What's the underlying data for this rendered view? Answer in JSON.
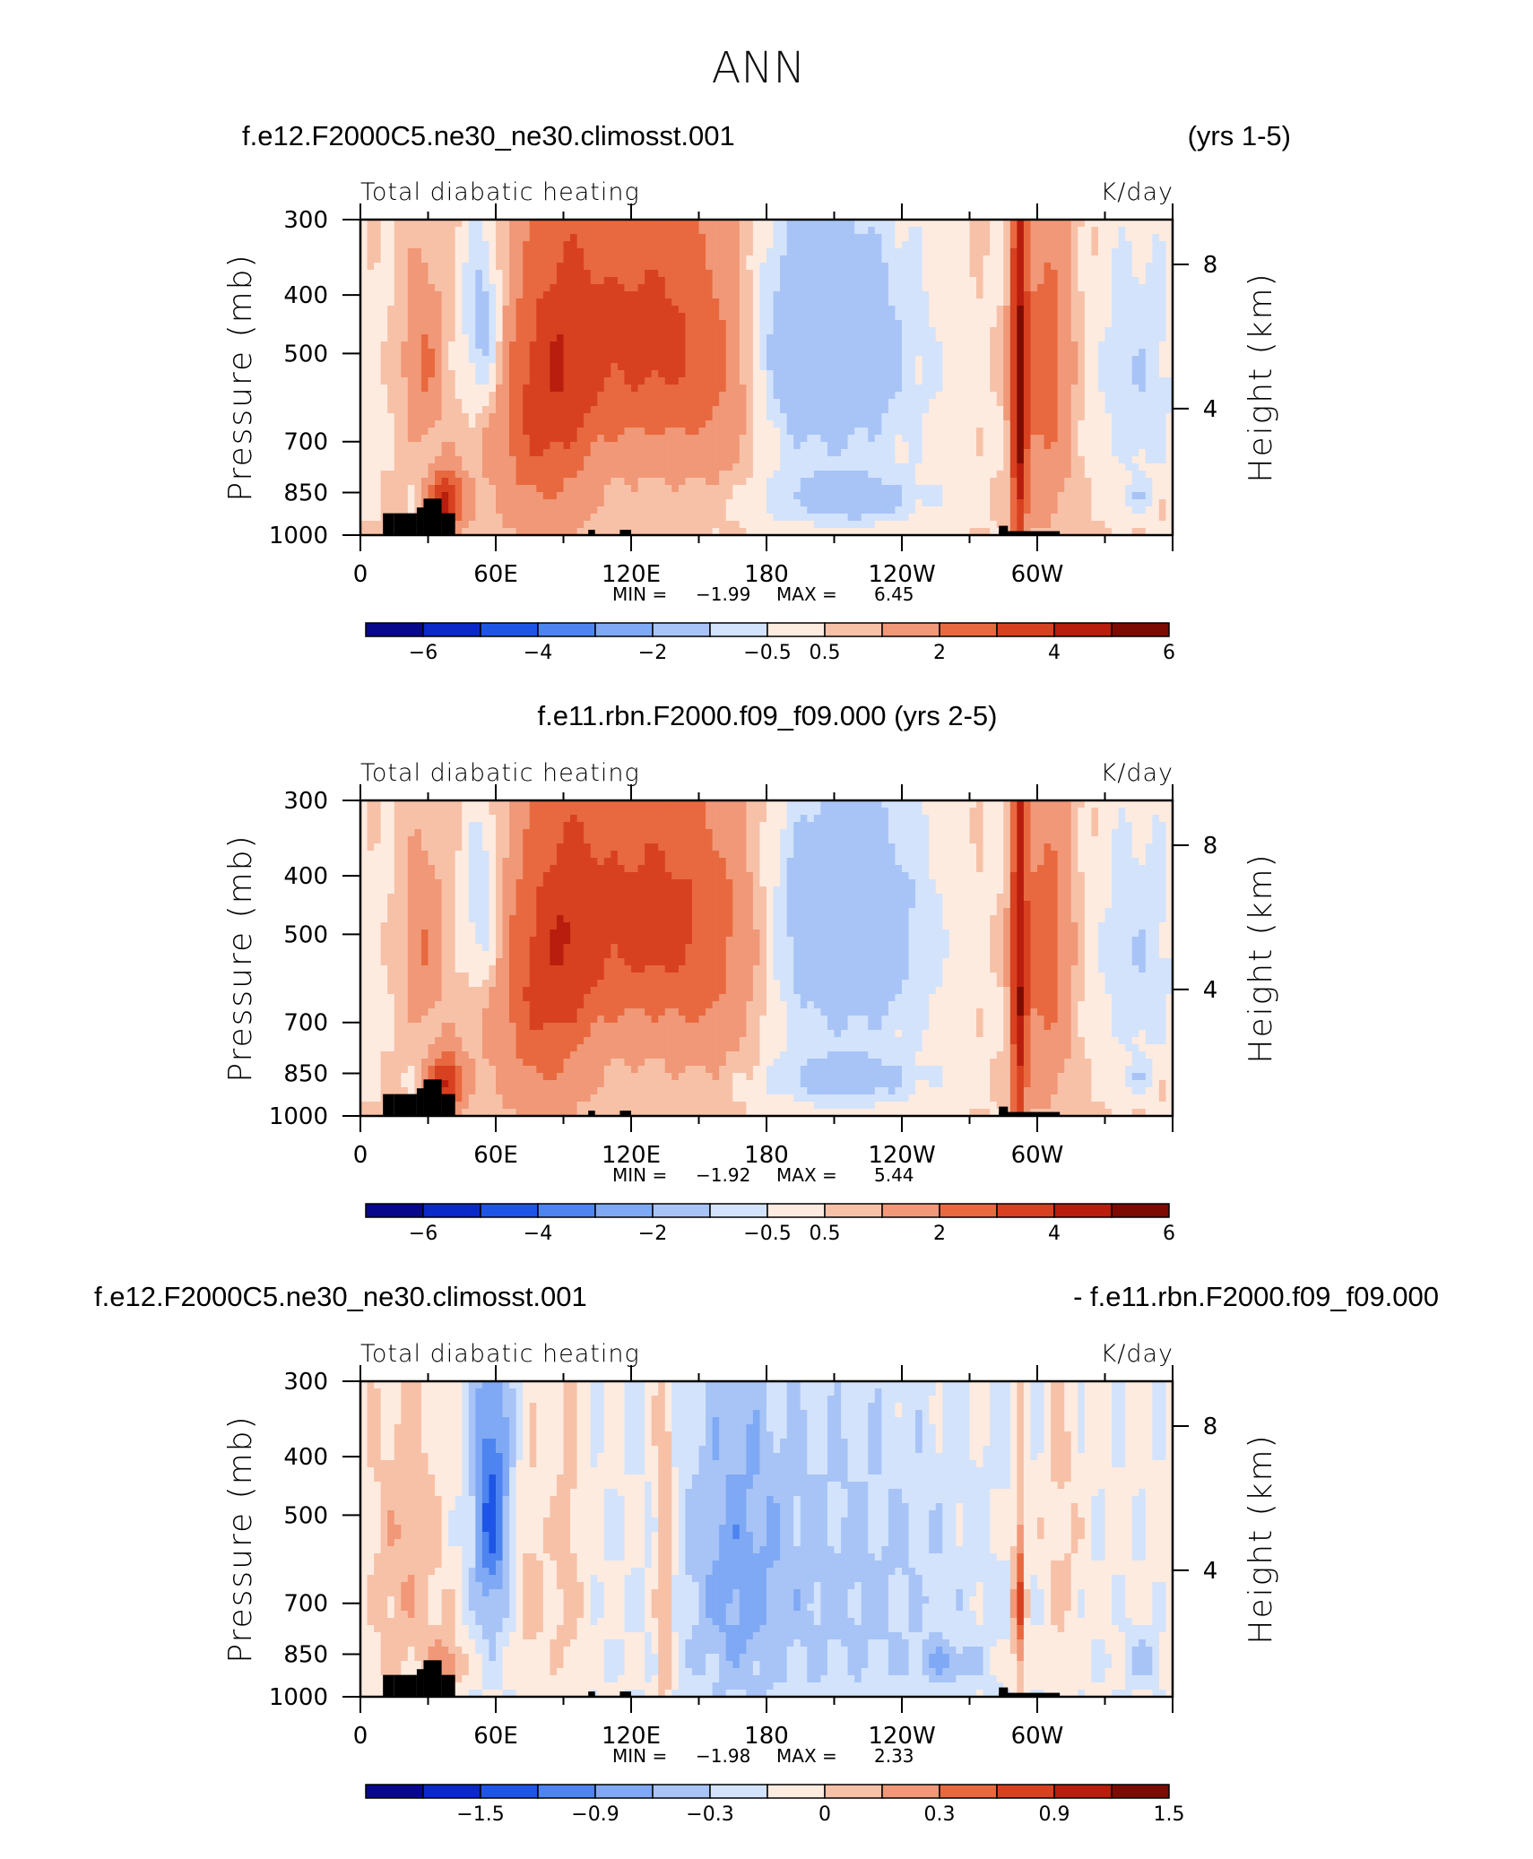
{
  "title": "ANN",
  "colors": {
    "palette": [
      "#08088c",
      "#0b28c8",
      "#1f55e6",
      "#4d84f0",
      "#7fa9f4",
      "#a8c4f6",
      "#d3e3fb",
      "#fdebe0",
      "#f7c1a8",
      "#f09877",
      "#e8693f",
      "#d84120",
      "#b81d0d",
      "#7c0b04"
    ],
    "land": "#000000"
  },
  "chart_data": [
    {
      "type": "heatmap",
      "panel": "panel-1",
      "case_title": "f.e12.F2000C5.ne30_ne30.climosst.001",
      "years": "(yrs 1-5)",
      "variable": "Total diabatic heating",
      "units": "K/day",
      "ylabel": "Pressure (mb)",
      "right_label": "Height (km)",
      "x_ticks": [
        "0",
        "60E",
        "120E",
        "180",
        "120W",
        "60W"
      ],
      "y_ticks": [
        "300",
        "400",
        "500",
        "700",
        "850",
        "1000"
      ],
      "height_ticks": [
        "8",
        "4"
      ],
      "min_label": "MIN =",
      "min": "−1.99",
      "max_label": "MAX =",
      "max": "6.45",
      "cb_labels": [
        "−6",
        "−4",
        "−2",
        "−0.5",
        "0.5",
        "2",
        "4",
        "6"
      ],
      "fields": [
        {
          "cx": 80,
          "cp": 600,
          "sx": 15,
          "sp": 230,
          "amp": 2.6
        },
        {
          "cx": 38,
          "cp": 880,
          "sx": 5,
          "sp": 70,
          "amp": 4.0
        },
        {
          "cx": 28,
          "cp": 520,
          "sx": 6,
          "sp": 110,
          "amp": 1.5
        },
        {
          "cx": 55,
          "cp": 450,
          "sx": 7,
          "sp": 120,
          "amp": -1.8
        },
        {
          "cx": 95,
          "cp": 450,
          "sx": 10,
          "sp": 170,
          "amp": 1.2
        },
        {
          "cx": 125,
          "cp": 470,
          "sx": 20,
          "sp": 170,
          "amp": 2.7
        },
        {
          "cx": 158,
          "cp": 520,
          "sx": 15,
          "sp": 200,
          "amp": 1.5
        },
        {
          "cx": 205,
          "cp": 470,
          "sx": 23,
          "sp": 150,
          "amp": -1.9
        },
        {
          "cx": 215,
          "cp": 870,
          "sx": 22,
          "sp": 55,
          "amp": -1.4
        },
        {
          "cx": 214,
          "cp": 620,
          "sx": 45,
          "sp": 300,
          "amp": -0.6
        },
        {
          "cx": 292,
          "cp": 600,
          "sx": 2.5,
          "sp": 400,
          "amp": 4.2
        },
        {
          "cx": 303,
          "cp": 540,
          "sx": 8,
          "sp": 250,
          "amp": 2.0
        },
        {
          "cx": 345,
          "cp": 550,
          "sx": 14,
          "sp": 220,
          "amp": -1.0
        },
        {
          "cx": 345,
          "cp": 870,
          "sx": 4,
          "sp": 40,
          "amp": -0.7
        }
      ],
      "base": 0.6,
      "slope": 0.0,
      "scale": 1.0,
      "levels": [
        -7,
        -6,
        -5,
        -4,
        -3,
        -2,
        -0.5,
        0,
        0.5,
        1,
        2,
        3,
        4,
        5,
        6,
        7
      ]
    },
    {
      "type": "heatmap",
      "panel": "panel-2",
      "case_title": "f.e11.rbn.F2000.f09_f09.000 (yrs 2-5)",
      "variable": "Total diabatic heating",
      "units": "K/day",
      "ylabel": "Pressure (mb)",
      "right_label": "Height (km)",
      "x_ticks": [
        "0",
        "60E",
        "120E",
        "180",
        "120W",
        "60W"
      ],
      "y_ticks": [
        "300",
        "400",
        "500",
        "700",
        "850",
        "1000"
      ],
      "height_ticks": [
        "8",
        "4"
      ],
      "min_label": "MIN =",
      "min": "−1.92",
      "max_label": "MAX =",
      "max": "5.44",
      "cb_labels": [
        "−6",
        "−4",
        "−2",
        "−0.5",
        "0.5",
        "2",
        "4",
        "6"
      ],
      "fields": [
        {
          "cx": 80,
          "cp": 600,
          "sx": 15,
          "sp": 230,
          "amp": 2.5
        },
        {
          "cx": 38,
          "cp": 880,
          "sx": 5,
          "sp": 70,
          "amp": 3.6
        },
        {
          "cx": 28,
          "cp": 520,
          "sx": 6,
          "sp": 110,
          "amp": 1.4
        },
        {
          "cx": 55,
          "cp": 450,
          "sx": 7,
          "sp": 120,
          "amp": -1.4
        },
        {
          "cx": 95,
          "cp": 450,
          "sx": 10,
          "sp": 170,
          "amp": 1.3
        },
        {
          "cx": 125,
          "cp": 470,
          "sx": 20,
          "sp": 170,
          "amp": 2.7
        },
        {
          "cx": 158,
          "cp": 520,
          "sx": 16,
          "sp": 210,
          "amp": 1.6
        },
        {
          "cx": 215,
          "cp": 470,
          "sx": 22,
          "sp": 150,
          "amp": -1.8
        },
        {
          "cx": 215,
          "cp": 870,
          "sx": 22,
          "sp": 55,
          "amp": -1.3
        },
        {
          "cx": 214,
          "cp": 620,
          "sx": 45,
          "sp": 300,
          "amp": -0.6
        },
        {
          "cx": 292,
          "cp": 600,
          "sx": 2.5,
          "sp": 400,
          "amp": 3.8
        },
        {
          "cx": 303,
          "cp": 540,
          "sx": 8,
          "sp": 250,
          "amp": 2.0
        },
        {
          "cx": 345,
          "cp": 550,
          "sx": 14,
          "sp": 220,
          "amp": -1.0
        },
        {
          "cx": 345,
          "cp": 870,
          "sx": 4,
          "sp": 40,
          "amp": -0.7
        }
      ],
      "base": 0.6,
      "slope": 0.0,
      "scale": 1.0,
      "levels": [
        -7,
        -6,
        -5,
        -4,
        -3,
        -2,
        -0.5,
        0,
        0.5,
        1,
        2,
        3,
        4,
        5,
        6,
        7
      ]
    },
    {
      "type": "heatmap",
      "panel": "panel-3",
      "case_title_left": "f.e12.F2000C5.ne30_ne30.climosst.001",
      "case_title_right": "- f.e11.rbn.F2000.f09_f09.000",
      "variable": "Total diabatic heating",
      "units": "K/day",
      "ylabel": "Pressure (mb)",
      "right_label": "Height (km)",
      "x_ticks": [
        "0",
        "60E",
        "120E",
        "180",
        "120W",
        "60W"
      ],
      "y_ticks": [
        "300",
        "400",
        "500",
        "700",
        "850",
        "1000"
      ],
      "height_ticks": [
        "8",
        "4"
      ],
      "min_label": "MIN =",
      "min": "−1.98",
      "max_label": "MAX =",
      "max": "2.33",
      "cb_labels": [
        "−1.5",
        "−0.9",
        "−0.3",
        "0",
        "0.3",
        "0.9",
        "1.5"
      ],
      "fields": [
        {
          "cx": 20,
          "cp": 600,
          "sx": 12,
          "sp": 300,
          "amp": 0.5
        },
        {
          "cx": 38,
          "cp": 880,
          "sx": 5,
          "sp": 60,
          "amp": 0.8
        },
        {
          "cx": 58,
          "cp": 480,
          "sx": 6,
          "sp": 200,
          "amp": -1.3
        },
        {
          "cx": 75,
          "cp": 650,
          "sx": 5,
          "sp": 200,
          "amp": 0.4
        },
        {
          "cx": 92,
          "cp": 600,
          "sx": 5,
          "sp": 300,
          "amp": 0.4
        },
        {
          "cx": 135,
          "cp": 600,
          "sx": 3,
          "sp": 350,
          "amp": 0.7
        },
        {
          "cx": 165,
          "cp": 600,
          "sx": 16,
          "sp": 300,
          "amp": -0.6
        },
        {
          "cx": 215,
          "cp": 650,
          "sx": 40,
          "sp": 300,
          "amp": -0.45
        },
        {
          "cx": 260,
          "cp": 880,
          "sx": 10,
          "sp": 50,
          "amp": -0.5
        },
        {
          "cx": 292,
          "cp": 700,
          "sx": 2,
          "sp": 200,
          "amp": 1.2
        },
        {
          "cx": 310,
          "cp": 550,
          "sx": 6,
          "sp": 250,
          "amp": 0.35
        },
        {
          "cx": 348,
          "cp": 870,
          "sx": 6,
          "sp": 60,
          "amp": -0.5
        }
      ],
      "base": 0.05,
      "slope": 0.0,
      "scale": 1.0,
      "levels": [
        -2.1,
        -1.8,
        -1.5,
        -1.2,
        -0.9,
        -0.6,
        -0.3,
        0,
        0.3,
        0.6,
        0.9,
        1.2,
        1.5,
        1.8,
        2.1
      ]
    }
  ]
}
